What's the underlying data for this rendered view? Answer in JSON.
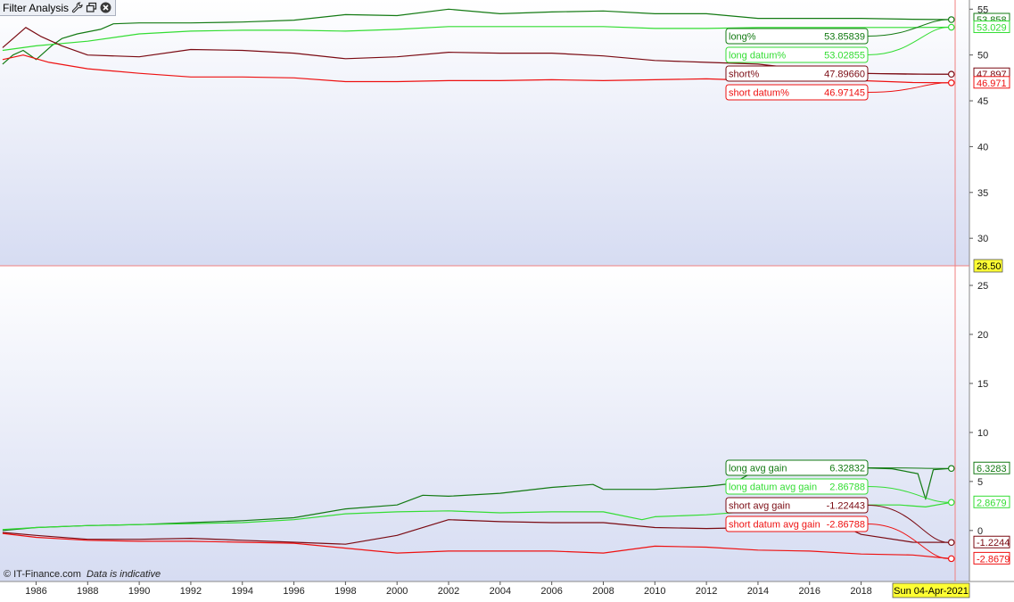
{
  "window": {
    "title": "Filter Analysis",
    "copyright": "© IT-Finance.com",
    "disclaimer": "Data is indicative"
  },
  "crosshair": {
    "date_label": "Sun 04-Apr-2021",
    "value_label": "28.50"
  },
  "icons": [
    "wrench-icon",
    "restore-window-icon",
    "close-icon"
  ],
  "chart_data": [
    {
      "type": "line",
      "panel": "upper",
      "x_range": [
        1984.6,
        2022.2
      ],
      "ylim": [
        27,
        56
      ],
      "yticks": [
        30,
        35,
        40,
        45,
        50,
        55
      ],
      "grid": false,
      "series": [
        {
          "name": "long%",
          "value_label": "53.85839",
          "axis_label": "53.858",
          "color": "#137a13",
          "points": [
            [
              1984.7,
              49
            ],
            [
              1985.1,
              50
            ],
            [
              1985.5,
              50.5
            ],
            [
              1986,
              49.5
            ],
            [
              1986.6,
              51
            ],
            [
              1987,
              51.8
            ],
            [
              1987.6,
              52.3
            ],
            [
              1988.5,
              52.8
            ],
            [
              1989,
              53.4
            ],
            [
              1990,
              53.5
            ],
            [
              1992,
              53.5
            ],
            [
              1994,
              53.6
            ],
            [
              1996,
              53.8
            ],
            [
              1998,
              54.4
            ],
            [
              2000,
              54.3
            ],
            [
              2002,
              55
            ],
            [
              2004,
              54.5
            ],
            [
              2006,
              54.7
            ],
            [
              2008,
              54.8
            ],
            [
              2010,
              54.5
            ],
            [
              2012,
              54.5
            ],
            [
              2014,
              54
            ],
            [
              2016,
              54
            ],
            [
              2018,
              54
            ],
            [
              2020,
              53.9
            ],
            [
              2021.5,
              53.86
            ]
          ]
        },
        {
          "name": "long datum%",
          "value_label": "53.02855",
          "axis_label": "53.029",
          "color": "#33dd33",
          "points": [
            [
              1984.7,
              50.5
            ],
            [
              1986,
              51
            ],
            [
              1988,
              51.5
            ],
            [
              1990,
              52.3
            ],
            [
              1992,
              52.6
            ],
            [
              1994,
              52.7
            ],
            [
              1996,
              52.7
            ],
            [
              1998,
              52.6
            ],
            [
              2000,
              52.8
            ],
            [
              2002,
              53.1
            ],
            [
              2004,
              53.1
            ],
            [
              2006,
              53.1
            ],
            [
              2008,
              53.1
            ],
            [
              2010,
              52.9
            ],
            [
              2012,
              52.9
            ],
            [
              2014,
              53
            ],
            [
              2016,
              53
            ],
            [
              2018,
              53
            ],
            [
              2020,
              53
            ],
            [
              2021.5,
              53.03
            ]
          ]
        },
        {
          "name": "short%",
          "value_label": "47.89660",
          "axis_label": "47.897",
          "color": "#7a0a12",
          "points": [
            [
              1984.7,
              50.8
            ],
            [
              1985.6,
              53
            ],
            [
              1986.2,
              52
            ],
            [
              1987,
              51
            ],
            [
              1988,
              50
            ],
            [
              1990,
              49.8
            ],
            [
              1992,
              50.6
            ],
            [
              1994,
              50.5
            ],
            [
              1996,
              50.2
            ],
            [
              1998,
              49.6
            ],
            [
              2000,
              49.8
            ],
            [
              2002,
              50.3
            ],
            [
              2004,
              50.2
            ],
            [
              2006,
              50.2
            ],
            [
              2008,
              49.9
            ],
            [
              2010,
              49.4
            ],
            [
              2012,
              49.2
            ],
            [
              2014,
              49
            ],
            [
              2016,
              48.4
            ],
            [
              2018,
              48
            ],
            [
              2020,
              47.9
            ],
            [
              2021.5,
              47.9
            ]
          ]
        },
        {
          "name": "short datum%",
          "value_label": "46.97145",
          "axis_label": "46.971",
          "color": "#ee1111",
          "points": [
            [
              1984.7,
              49.5
            ],
            [
              1985.5,
              50
            ],
            [
              1986.5,
              49.2
            ],
            [
              1988,
              48.5
            ],
            [
              1990,
              48
            ],
            [
              1992,
              47.6
            ],
            [
              1994,
              47.6
            ],
            [
              1996,
              47.5
            ],
            [
              1998,
              47.1
            ],
            [
              2000,
              47.1
            ],
            [
              2002,
              47.2
            ],
            [
              2004,
              47.2
            ],
            [
              2006,
              47.3
            ],
            [
              2008,
              47.2
            ],
            [
              2010,
              47.3
            ],
            [
              2012,
              47.4
            ],
            [
              2014,
              47.2
            ],
            [
              2016,
              47.3
            ],
            [
              2018,
              47.2
            ],
            [
              2020,
              47
            ],
            [
              2021.5,
              46.97
            ]
          ]
        }
      ]
    },
    {
      "type": "line",
      "panel": "lower",
      "x_range": [
        1984.6,
        2022.2
      ],
      "ylim": [
        -5.2,
        27
      ],
      "yticks": [
        0,
        5,
        10,
        15,
        20,
        25
      ],
      "xticks": [
        1986,
        1988,
        1990,
        1992,
        1994,
        1996,
        1998,
        2000,
        2002,
        2004,
        2006,
        2008,
        2010,
        2012,
        2014,
        2016,
        2018
      ],
      "grid": false,
      "series": [
        {
          "name": "long avg gain",
          "value_label": "6.32832",
          "axis_label": "6.3283",
          "color": "#137a13",
          "points": [
            [
              1984.7,
              0
            ],
            [
              1986,
              0.3
            ],
            [
              1988,
              0.5
            ],
            [
              1990,
              0.6
            ],
            [
              1992,
              0.8
            ],
            [
              1994,
              1
            ],
            [
              1996,
              1.3
            ],
            [
              1998,
              2.2
            ],
            [
              2000,
              2.6
            ],
            [
              2001,
              3.6
            ],
            [
              2002,
              3.5
            ],
            [
              2004,
              3.8
            ],
            [
              2006,
              4.4
            ],
            [
              2007.6,
              4.7
            ],
            [
              2008,
              4.2
            ],
            [
              2010,
              4.2
            ],
            [
              2012,
              4.5
            ],
            [
              2013,
              4.8
            ],
            [
              2014,
              6.2
            ],
            [
              2016,
              6.3
            ],
            [
              2018,
              6.4
            ],
            [
              2019.2,
              6.3
            ],
            [
              2020.2,
              5.8
            ],
            [
              2020.5,
              3.2
            ],
            [
              2020.8,
              6.2
            ],
            [
              2021.5,
              6.33
            ]
          ]
        },
        {
          "name": "long datum avg gain",
          "value_label": "2.86788",
          "axis_label": "2.8679",
          "color": "#33dd33",
          "points": [
            [
              1984.7,
              0.1
            ],
            [
              1986,
              0.3
            ],
            [
              1988,
              0.5
            ],
            [
              1990,
              0.6
            ],
            [
              1992,
              0.7
            ],
            [
              1994,
              0.8
            ],
            [
              1996,
              1.1
            ],
            [
              1998,
              1.7
            ],
            [
              2000,
              1.9
            ],
            [
              2002,
              2
            ],
            [
              2004,
              1.8
            ],
            [
              2006,
              1.9
            ],
            [
              2008,
              1.9
            ],
            [
              2009.5,
              1.1
            ],
            [
              2010,
              1.4
            ],
            [
              2012,
              1.6
            ],
            [
              2014,
              2
            ],
            [
              2016,
              2.3
            ],
            [
              2018,
              2.6
            ],
            [
              2019.5,
              2.6
            ],
            [
              2020.5,
              2.4
            ],
            [
              2021.5,
              2.87
            ]
          ]
        },
        {
          "name": "short avg gain",
          "value_label": "-1.22443",
          "axis_label": "-1.2244",
          "color": "#7a0a12",
          "points": [
            [
              1984.7,
              -0.2
            ],
            [
              1986,
              -0.5
            ],
            [
              1988,
              -0.9
            ],
            [
              1990,
              -0.9
            ],
            [
              1992,
              -0.8
            ],
            [
              1994,
              -1
            ],
            [
              1996,
              -1.2
            ],
            [
              1998,
              -1.4
            ],
            [
              2000,
              -0.5
            ],
            [
              2002,
              1.1
            ],
            [
              2004,
              0.9
            ],
            [
              2006,
              0.8
            ],
            [
              2008,
              0.8
            ],
            [
              2010,
              0.3
            ],
            [
              2012,
              0.2
            ],
            [
              2014,
              0.3
            ],
            [
              2016,
              0.3
            ],
            [
              2017,
              0.8
            ],
            [
              2018,
              -0.4
            ],
            [
              2020,
              -1.2
            ],
            [
              2021.5,
              -1.22
            ]
          ]
        },
        {
          "name": "short datum avg gain",
          "value_label": "-2.86788",
          "axis_label": "-2.8679",
          "color": "#ee1111",
          "points": [
            [
              1984.7,
              -0.3
            ],
            [
              1986,
              -0.7
            ],
            [
              1988,
              -1
            ],
            [
              1990,
              -1.1
            ],
            [
              1992,
              -1.1
            ],
            [
              1994,
              -1.2
            ],
            [
              1996,
              -1.3
            ],
            [
              1998,
              -1.8
            ],
            [
              2000,
              -2.3
            ],
            [
              2002,
              -2.1
            ],
            [
              2004,
              -2.1
            ],
            [
              2006,
              -2.1
            ],
            [
              2008,
              -2.3
            ],
            [
              2010,
              -1.6
            ],
            [
              2012,
              -1.7
            ],
            [
              2014,
              -2
            ],
            [
              2016,
              -2.1
            ],
            [
              2018,
              -2.4
            ],
            [
              2020,
              -2.5
            ],
            [
              2021.5,
              -2.87
            ]
          ]
        }
      ]
    }
  ]
}
